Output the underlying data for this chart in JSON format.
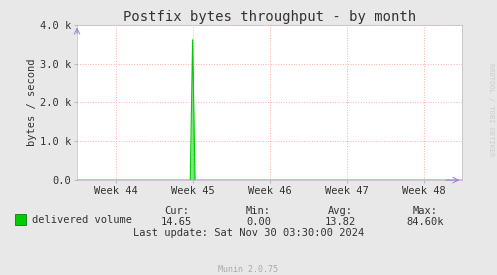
{
  "title": "Postfix bytes throughput - by month",
  "ylabel": "bytes / second",
  "background_color": "#e8e8e8",
  "plot_bg_color": "#ffffff",
  "grid_color": "#ffaaaa",
  "line_color": "#00cc00",
  "line_color_dark": "#006600",
  "xtick_labels": [
    "Week 44",
    "Week 45",
    "Week 46",
    "Week 47",
    "Week 48"
  ],
  "xtick_positions": [
    0.5,
    1.5,
    2.5,
    3.5,
    4.5
  ],
  "xlim": [
    0,
    5
  ],
  "ylim": [
    0,
    4000
  ],
  "ytick_positions": [
    0,
    1000,
    2000,
    3000,
    4000
  ],
  "ytick_labels": [
    "0.0",
    "1.0 k",
    "2.0 k",
    "3.0 k",
    "4.0 k"
  ],
  "spike_x": 1.5,
  "spike_y": 3650,
  "legend_label": "delivered volume",
  "stats_headers": [
    "Cur:",
    "Min:",
    "Avg:",
    "Max:"
  ],
  "stats_values": [
    "14.65",
    "0.00",
    "13.82",
    "84.60k"
  ],
  "last_update": "Last update: Sat Nov 30 03:30:00 2024",
  "footer": "Munin 2.0.75",
  "watermark": "RRDTOOL / TOBI OETIKER",
  "title_fontsize": 10,
  "axis_fontsize": 7.5,
  "tick_fontsize": 7.5,
  "legend_fontsize": 7.5,
  "stats_fontsize": 7.5,
  "footer_fontsize": 6,
  "watermark_fontsize": 5
}
